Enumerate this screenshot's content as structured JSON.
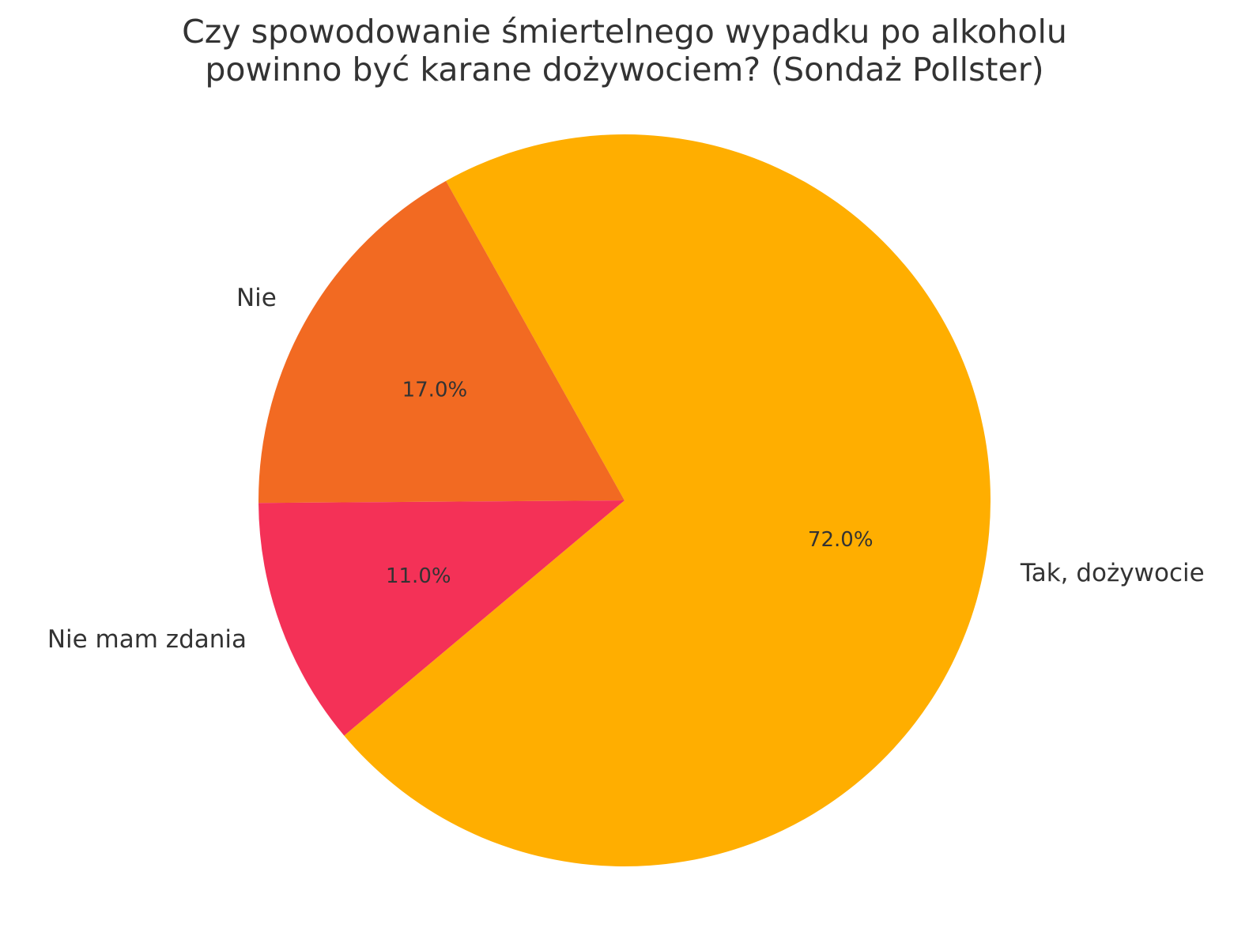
{
  "chart_data": {
    "type": "pie",
    "title_lines": [
      "Czy spowodowanie śmiertelnego wypadku po alkoholu",
      "powinno być karane dożywociem? (Sondaż Pollster)"
    ],
    "slices": [
      {
        "label": "Tak, dożywocie",
        "value": 72.0,
        "pct_label": "72.0%",
        "color": "#FFAE00"
      },
      {
        "label": "Nie",
        "value": 17.0,
        "pct_label": "17.0%",
        "color": "#F26A22"
      },
      {
        "label": "Nie mam zdania",
        "value": 11.0,
        "pct_label": "11.0%",
        "color": "#F43157"
      }
    ],
    "start_angle_deg": 220,
    "direction": "counterclockwise",
    "legend": "none"
  }
}
